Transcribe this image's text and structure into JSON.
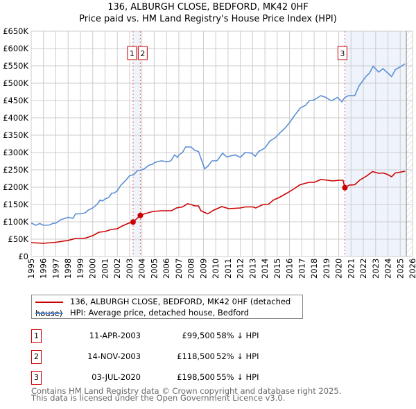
{
  "title": {
    "line1": "136, ALBURGH CLOSE, BEDFORD, MK42 0HF",
    "line2": "Price paid vs. HM Land Registry's House Price Index (HPI)"
  },
  "chart_data": {
    "type": "line",
    "title": "136, ALBURGH CLOSE, BEDFORD, MK42 0HF — Price paid vs. HM Land Registry's House Price Index (HPI)",
    "xlim": [
      1995,
      2026
    ],
    "ylim": [
      0,
      650000
    ],
    "grid": true,
    "x_ticks": [
      "1995",
      "1996",
      "1997",
      "1998",
      "1999",
      "2000",
      "2001",
      "2002",
      "2003",
      "2004",
      "2005",
      "2006",
      "2007",
      "2008",
      "2009",
      "2010",
      "2011",
      "2012",
      "2013",
      "2014",
      "2015",
      "2016",
      "2017",
      "2018",
      "2019",
      "2020",
      "2021",
      "2022",
      "2023",
      "2024",
      "2025",
      "2026"
    ],
    "y_ticks": [
      {
        "v": 0,
        "label": "£0"
      },
      {
        "v": 50000,
        "label": "£50K"
      },
      {
        "v": 100000,
        "label": "£100K"
      },
      {
        "v": 150000,
        "label": "£150K"
      },
      {
        "v": 200000,
        "label": "£200K"
      },
      {
        "v": 250000,
        "label": "£250K"
      },
      {
        "v": 300000,
        "label": "£300K"
      },
      {
        "v": 350000,
        "label": "£350K"
      },
      {
        "v": 400000,
        "label": "£400K"
      },
      {
        "v": 450000,
        "label": "£450K"
      },
      {
        "v": 500000,
        "label": "£500K"
      },
      {
        "v": 550000,
        "label": "£550K"
      },
      {
        "v": 600000,
        "label": "£600K"
      },
      {
        "v": 650000,
        "label": "£650K"
      }
    ],
    "series": [
      {
        "name": "136, ALBURGH CLOSE, BEDFORD, MK42 0HF (detached house)",
        "color": "#cc0000",
        "x": [
          1995,
          1996,
          1997,
          1998,
          1998.6,
          1999,
          1999.4,
          2000,
          2000.5,
          2001,
          2001.5,
          2002,
          2002.4,
          2002.95,
          2003.28,
          2003.87,
          2004.2,
          2004.9,
          2005.6,
          2006.4,
          2006.8,
          2007.3,
          2007.7,
          2008,
          2008.3,
          2008.6,
          2008.8,
          2009.35,
          2009.8,
          2010.5,
          2011.05,
          2012,
          2012.4,
          2013.05,
          2013.25,
          2013.85,
          2014.3,
          2014.7,
          2015.2,
          2015.8,
          2016.4,
          2016.8,
          2017.25,
          2017.6,
          2018,
          2018.55,
          2019.1,
          2019.5,
          2020.05,
          2020.35,
          2020.5,
          2020.85,
          2021.3,
          2021.7,
          2022.25,
          2022.75,
          2023.25,
          2023.65,
          2024,
          2024.3,
          2024.6,
          2024.95,
          2025.4
        ],
        "y": [
          40000,
          38000,
          41000,
          46500,
          52000,
          52000,
          53000,
          60000,
          70000,
          72000,
          78000,
          80000,
          88000,
          96500,
          99500,
          118500,
          123000,
          130000,
          132000,
          132000,
          140000,
          143000,
          152000,
          150000,
          146000,
          146000,
          132000,
          123000,
          133000,
          144000,
          138000,
          140000,
          143000,
          143000,
          140000,
          150000,
          151000,
          163000,
          171000,
          183000,
          196000,
          206000,
          211000,
          214000,
          214000,
          222000,
          220000,
          218000,
          220000,
          220000,
          198500,
          206000,
          207000,
          220000,
          232000,
          245000,
          240000,
          241000,
          236000,
          230000,
          241000,
          243000,
          246000
        ]
      },
      {
        "name": "HPI: Average price, detached house, Bedford",
        "color": "#5b8fd4",
        "x": [
          1995,
          1995.35,
          1995.7,
          1996,
          1996.5,
          1996.8,
          1997,
          1997.4,
          1998,
          1998.4,
          1998.6,
          1999,
          1999.4,
          1999.6,
          2000,
          2000.35,
          2000.6,
          2000.8,
          2001,
          2001.3,
          2001.55,
          2001.75,
          2002,
          2002.3,
          2002.7,
          2003,
          2003.35,
          2003.6,
          2004,
          2004.2,
          2004.55,
          2004.85,
          2005,
          2005.2,
          2005.6,
          2006,
          2006.35,
          2006.65,
          2006.9,
          2007,
          2007.3,
          2007.55,
          2008,
          2008.3,
          2008.6,
          2008.9,
          2009.1,
          2009.35,
          2009.7,
          2010.1,
          2010.56,
          2010.9,
          2011.3,
          2011.6,
          2012,
          2012.4,
          2012.95,
          2013.2,
          2013.5,
          2014,
          2014.4,
          2014.85,
          2015.2,
          2015.6,
          2016,
          2016.45,
          2016.9,
          2017.3,
          2017.6,
          2018,
          2018.55,
          2018.95,
          2019.4,
          2019.9,
          2020.25,
          2020.5,
          2020.8,
          2021.3,
          2021.65,
          2022.2,
          2022.5,
          2022.8,
          2023.25,
          2023.6,
          2024,
          2024.3,
          2024.6,
          2024.95,
          2025.4
        ],
        "y": [
          97000,
          90000,
          95000,
          90000,
          91000,
          96000,
          96000,
          106000,
          113000,
          110000,
          123000,
          123000,
          126000,
          133000,
          140000,
          150000,
          163000,
          160000,
          166000,
          170000,
          183000,
          183000,
          190000,
          206000,
          220000,
          233000,
          236000,
          247000,
          250000,
          253000,
          263000,
          266000,
          270000,
          273000,
          276000,
          273000,
          276000,
          293000,
          286000,
          293000,
          300000,
          316000,
          316000,
          306000,
          303000,
          273000,
          253000,
          260000,
          276000,
          276000,
          298000,
          287000,
          291000,
          293000,
          286000,
          300000,
          298000,
          289000,
          303000,
          313000,
          333000,
          343000,
          356000,
          369000,
          386000,
          409000,
          429000,
          436000,
          449000,
          452000,
          464000,
          459000,
          449000,
          459000,
          446000,
          459000,
          464000,
          464000,
          492000,
          519000,
          529000,
          549000,
          532000,
          542000,
          529000,
          519000,
          539000,
          546000,
          556000
        ]
      }
    ],
    "annotations": [
      {
        "id": "1",
        "x": 2003.28,
        "y": 99500
      },
      {
        "id": "2",
        "x": 2003.87,
        "y": 118500
      },
      {
        "id": "3",
        "x": 2020.5,
        "y": 198500
      }
    ],
    "shaded_ranges": [
      [
        2003.28,
        2003.87
      ],
      [
        2020.5,
        2025.5
      ]
    ],
    "hatched_range": [
      2025.5,
      2026
    ]
  },
  "legend": {
    "red_label": "136, ALBURGH CLOSE, BEDFORD, MK42 0HF (detached house)",
    "blue_label": "HPI: Average price, detached house, Bedford"
  },
  "transactions": [
    {
      "num": "1",
      "date": "11-APR-2003",
      "price": "£99,500",
      "pct": "58% ↓ HPI"
    },
    {
      "num": "2",
      "date": "14-NOV-2003",
      "price": "£118,500",
      "pct": "52% ↓ HPI"
    },
    {
      "num": "3",
      "date": "03-JUL-2020",
      "price": "£198,500",
      "pct": "55% ↓ HPI"
    }
  ],
  "footer": {
    "line1": "Contains HM Land Registry data © Crown copyright and database right 2025.",
    "line2": "This data is licensed under the Open Government Licence v3.0."
  }
}
